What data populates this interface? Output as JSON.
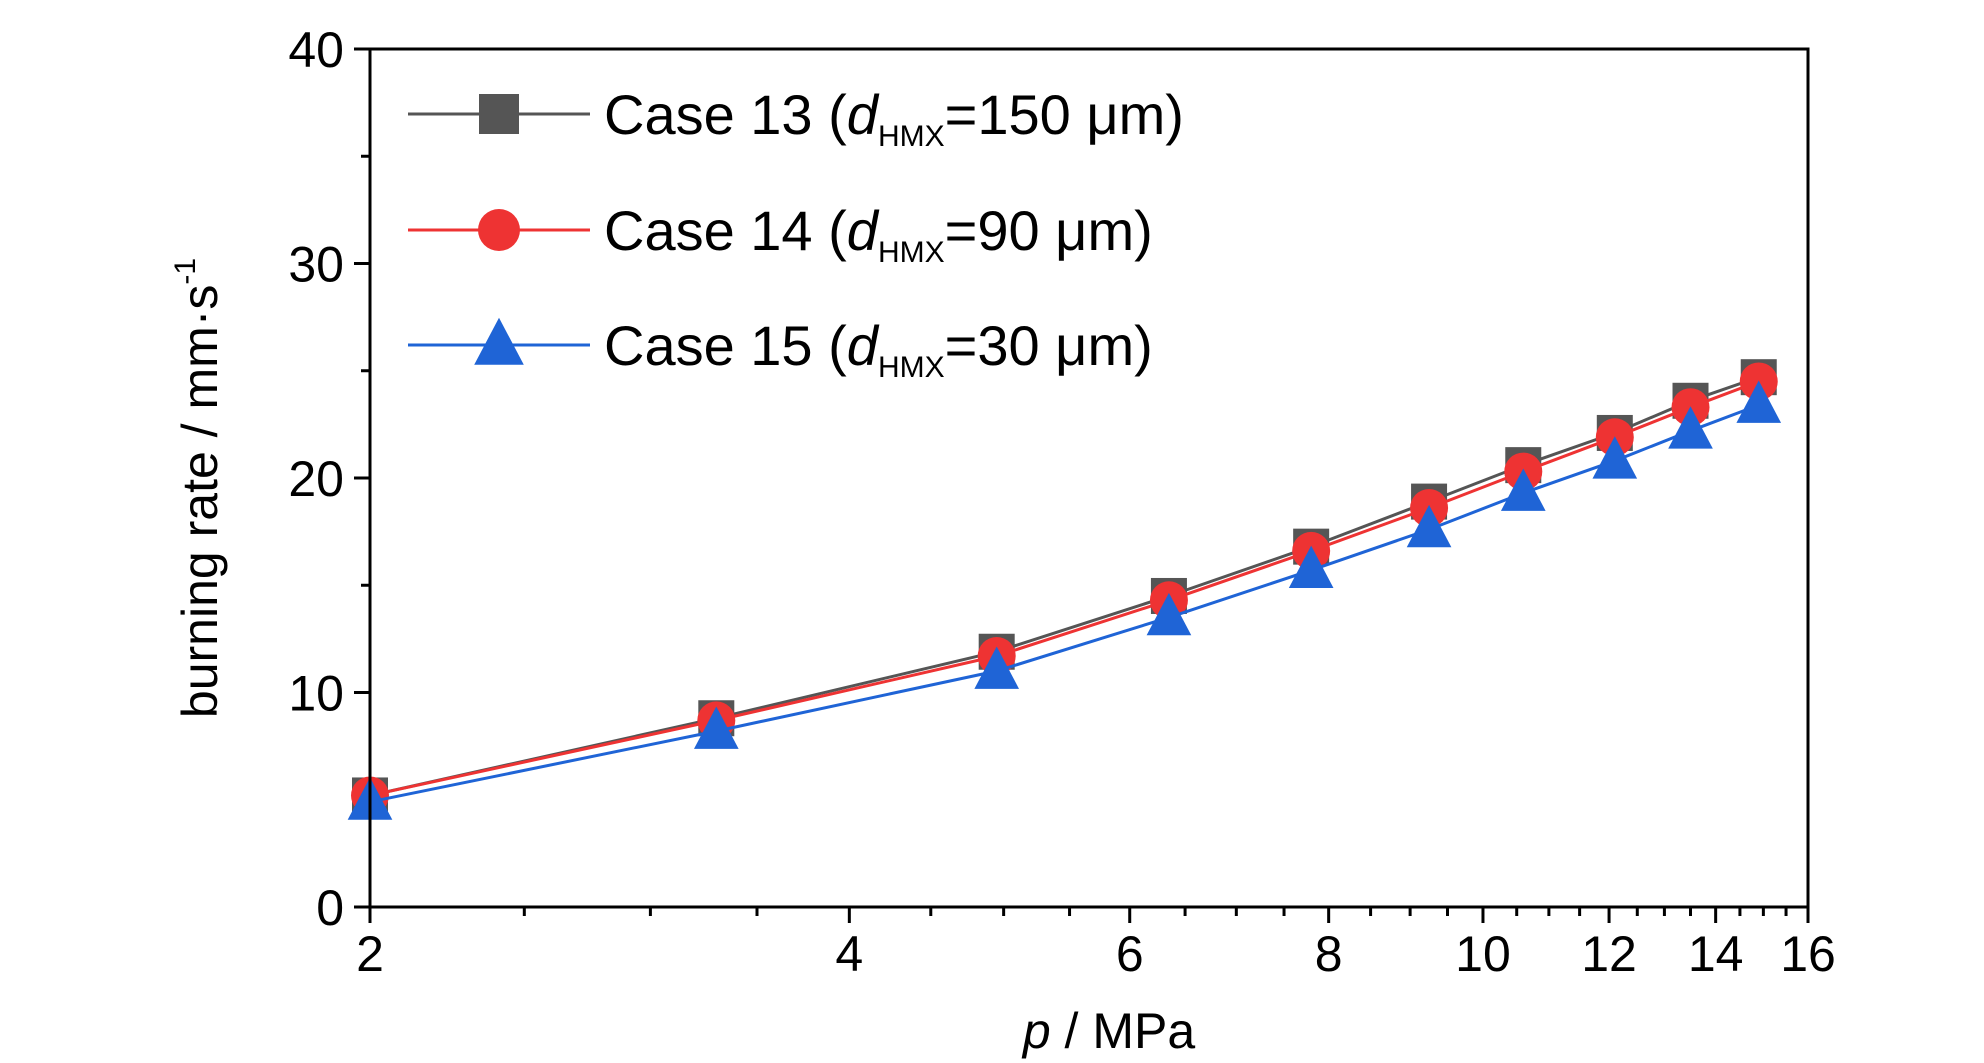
{
  "chart_data": {
    "type": "line",
    "x_scale": "log",
    "x_ticks": [
      2,
      4,
      6,
      8,
      10,
      12,
      14,
      16
    ],
    "y_ticks": [
      0,
      10,
      20,
      30,
      40
    ],
    "xlim": [
      2,
      16
    ],
    "ylim": [
      0,
      40
    ],
    "xlabel": {
      "var": "p",
      "rest": " / MPa"
    },
    "ylabel": {
      "main": "burning rate / mm·s",
      "sup": "-1"
    },
    "legend_position": "top-left",
    "series": [
      {
        "name": {
          "prefix": "Case 13 (",
          "var": "d",
          "sub": "HMX",
          "suffix": "=150 μm)"
        },
        "marker": "square",
        "color": "#555555",
        "x": [
          2.0,
          3.3,
          4.95,
          6.35,
          7.8,
          9.25,
          10.6,
          12.1,
          13.5,
          14.9
        ],
        "y": [
          5.2,
          8.8,
          11.9,
          14.5,
          16.8,
          18.9,
          20.6,
          22.1,
          23.6,
          24.7
        ]
      },
      {
        "name": {
          "prefix": "Case 14 (",
          "var": "d",
          "sub": "HMX",
          "suffix": "=90 μm)"
        },
        "marker": "circle",
        "color": "#ee3333",
        "x": [
          2.0,
          3.3,
          4.95,
          6.35,
          7.8,
          9.25,
          10.6,
          12.1,
          13.5,
          14.9
        ],
        "y": [
          5.2,
          8.7,
          11.7,
          14.3,
          16.6,
          18.6,
          20.3,
          21.9,
          23.3,
          24.5
        ]
      },
      {
        "name": {
          "prefix": "Case 15 (",
          "var": "d",
          "sub": "HMX",
          "suffix": "=30 μm)"
        },
        "marker": "triangle",
        "color": "#1f64d6",
        "x": [
          2.0,
          3.3,
          4.95,
          6.35,
          7.8,
          9.25,
          10.6,
          12.1,
          13.5,
          14.9
        ],
        "y": [
          4.9,
          8.2,
          11.0,
          13.5,
          15.7,
          17.6,
          19.3,
          20.8,
          22.2,
          23.4
        ]
      }
    ]
  }
}
